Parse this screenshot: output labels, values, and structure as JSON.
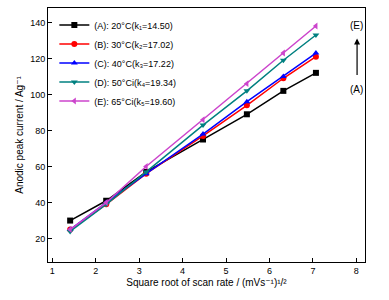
{
  "chart_data": {
    "type": "line",
    "x_label": "Square root of scan rate / (mVs⁻¹)¹/²",
    "y_label": "Anodic peak current / Ag⁻¹",
    "x": [
      1.41,
      2.24,
      3.16,
      4.47,
      5.48,
      6.32,
      7.07
    ],
    "series": [
      {
        "name": "(A): 20°C(k₁=14.50)",
        "color": "#000000",
        "marker": "square",
        "values": [
          30,
          41,
          57,
          75,
          89,
          102,
          112
        ]
      },
      {
        "name": "(B): 30°C(k₂=17.02)",
        "color": "#ff0000",
        "marker": "circle",
        "values": [
          25,
          39,
          56,
          77,
          94,
          109,
          121
        ]
      },
      {
        "name": "(C): 40°C(k₃=17.22)",
        "color": "#0000ff",
        "marker": "triangle-up",
        "values": [
          25,
          40,
          56,
          78,
          96,
          110,
          123
        ]
      },
      {
        "name": "(D): 50°Ci(k₄=19.34)",
        "color": "#008080",
        "marker": "triangle-down",
        "values": [
          24,
          39,
          57,
          83,
          102,
          119,
          133
        ]
      },
      {
        "name": "(E): 65°Ci(k₅=19.60)",
        "color": "#cc44cc",
        "marker": "triangle-left",
        "values": [
          25,
          40,
          60,
          86,
          106,
          123,
          138
        ]
      }
    ],
    "annotations": [
      "(E)",
      "(A)"
    ],
    "xlim": [
      0.9,
      8.2
    ],
    "ylim": [
      7,
      148
    ],
    "xticks": [
      1,
      2,
      3,
      4,
      5,
      6,
      7,
      8
    ],
    "yticks": [
      20,
      40,
      60,
      80,
      100,
      120,
      140
    ],
    "legend": "upper left",
    "grid": false
  }
}
